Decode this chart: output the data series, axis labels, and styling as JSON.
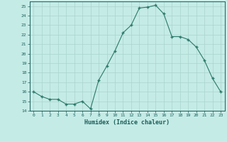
{
  "x": [
    0,
    1,
    2,
    3,
    4,
    5,
    6,
    7,
    8,
    9,
    10,
    11,
    12,
    13,
    14,
    15,
    16,
    17,
    18,
    19,
    20,
    21,
    22,
    23
  ],
  "y": [
    16,
    15.5,
    15.2,
    15.2,
    14.7,
    14.7,
    15.0,
    14.2,
    17.2,
    18.7,
    20.3,
    22.2,
    23.0,
    24.8,
    24.9,
    25.1,
    24.2,
    21.8,
    21.8,
    21.5,
    20.7,
    19.3,
    17.4,
    16.0
  ],
  "xlabel": "Humidex (Indice chaleur)",
  "ylim": [
    14,
    25.5
  ],
  "xlim": [
    -0.5,
    23.5
  ],
  "yticks": [
    14,
    15,
    16,
    17,
    18,
    19,
    20,
    21,
    22,
    23,
    24,
    25
  ],
  "xticks": [
    0,
    1,
    2,
    3,
    4,
    5,
    6,
    7,
    8,
    9,
    10,
    11,
    12,
    13,
    14,
    15,
    16,
    17,
    18,
    19,
    20,
    21,
    22,
    23
  ],
  "line_color": "#2a7a6a",
  "bg_color": "#c5ebe6",
  "grid_color": "#aad4ce",
  "tick_color": "#1a5f5a",
  "label_color": "#1a5f5a"
}
